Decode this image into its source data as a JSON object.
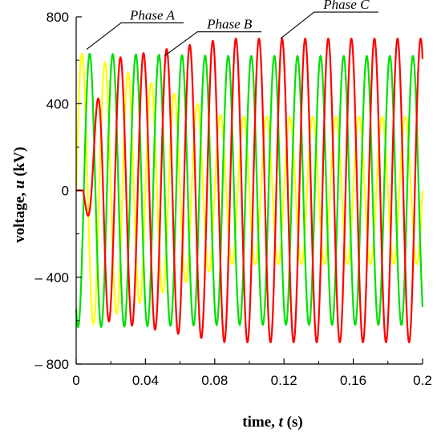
{
  "chart_data": {
    "type": "line",
    "title": "",
    "xlabel_parts": {
      "main": "time, ",
      "var": "t",
      "unit": " (s)"
    },
    "ylabel_parts": {
      "main": "voltage, ",
      "var": "u",
      "unit": " (kV)"
    },
    "xlim": [
      0,
      0.2
    ],
    "ylim": [
      -800,
      800
    ],
    "x_ticks": [
      0,
      0.04,
      0.08,
      0.12,
      0.16,
      0.2
    ],
    "x_tick_labels": [
      "0",
      "0.04",
      "0.08",
      "0.12",
      "0.16",
      "0.2"
    ],
    "y_ticks": [
      -800,
      -400,
      0,
      400,
      800
    ],
    "y_tick_labels": [
      "– 800",
      "– 400",
      "0",
      "400",
      "800"
    ],
    "grid": false,
    "frequency_hz": 75,
    "fault_time_s": 0.086,
    "series": [
      {
        "name": "Phase A",
        "color": "#ffff00",
        "x": [
          0,
          0.006,
          0.086,
          0.2
        ],
        "amplitude": [
          630,
          630,
          340,
          340
        ],
        "offset": [
          0,
          0,
          0,
          0
        ],
        "phase_deg": 0,
        "label_anchor": [
          0.006,
          650
        ]
      },
      {
        "name": "Phase B",
        "color": "#00e000",
        "x": [
          0,
          0.011,
          0.086,
          0.2
        ],
        "amplitude": [
          630,
          630,
          620,
          620
        ],
        "offset": [
          0,
          0,
          0,
          0
        ],
        "phase_deg": -120,
        "label_anchor": [
          0.051,
          620
        ]
      },
      {
        "name": "Phase C",
        "color": "#ff0000",
        "x": [
          0,
          0.004,
          0.016,
          0.086,
          0.2
        ],
        "amplitude": [
          0,
          0,
          600,
          700,
          700
        ],
        "offset": [
          0,
          0,
          0,
          0,
          0
        ],
        "phase_deg": 120,
        "label_anchor": [
          0.118,
          700
        ]
      }
    ]
  }
}
